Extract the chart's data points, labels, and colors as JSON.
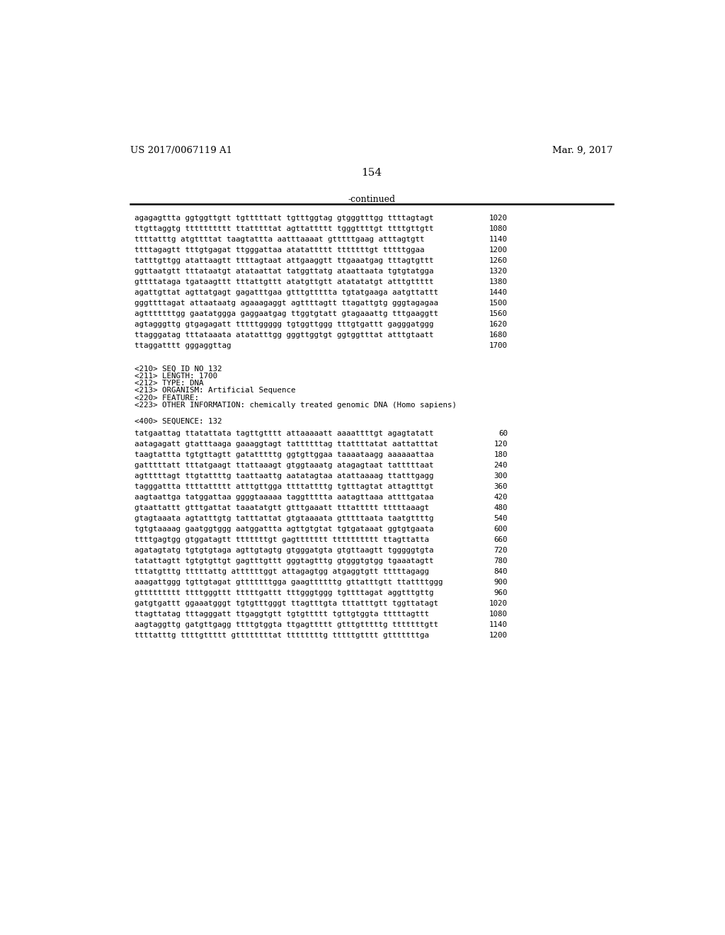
{
  "header_left": "US 2017/0067119 A1",
  "header_right": "Mar. 9, 2017",
  "page_number": "154",
  "continued_label": "-continued",
  "background_color": "#ffffff",
  "text_color": "#000000",
  "sequence_lines_top": [
    [
      "agagagttta ggtggttgtt tgtttttatt tgtttggtag gtgggtttgg ttttagtagt",
      "1020"
    ],
    [
      "ttgttaggtg tttttttttt ttatttttat agttattttt tgggttttgt ttttgttgtt",
      "1080"
    ],
    [
      "ttttatttg atgttttat taagtattta aatttaaaat gtttttgaag atttagtgtt",
      "1140"
    ],
    [
      "ttttagagtt tttgtgagat ttgggattaa atatattttt tttttttgt tttttggaa",
      "1200"
    ],
    [
      "tatttgttgg atattaagtt ttttagtaat attgaaggtt ttgaaatgag tttagtgttt",
      "1260"
    ],
    [
      "ggttaatgtt tttataatgt atataattat tatggttatg ataattaata tgtgtatgga",
      "1320"
    ],
    [
      "gttttataga tgataagttt tttattgttt atatgttgtt atatatatgt atttgttttt",
      "1380"
    ],
    [
      "agattgttat agttatgagt gagatttgaa gtttgttttta tgtatgaaga aatgttattt",
      "1440"
    ],
    [
      "gggttttagat attaataatg agaaagaggt agttttagtt ttagattgtg gggtagagaa",
      "1500"
    ],
    [
      "agtttttttgg gaatatggga gaggaatgag ttggtgtatt gtagaaattg tttgaaggtt",
      "1560"
    ],
    [
      "agtagggttg gtgagagatt tttttggggg tgtggttggg tttgtgattt gagggatggg",
      "1620"
    ],
    [
      "ttagggatag tttataaata atatatttgg gggttggtgt ggtggtttat atttgtaatt",
      "1680"
    ],
    [
      "ttaggatttt gggaggttag",
      "1700"
    ]
  ],
  "metadata_lines": [
    "<210> SEQ ID NO 132",
    "<211> LENGTH: 1700",
    "<212> TYPE: DNA",
    "<213> ORGANISM: Artificial Sequence",
    "<220> FEATURE:",
    "<223> OTHER INFORMATION: chemically treated genomic DNA (Homo sapiens)"
  ],
  "sequence400_label": "<400> SEQUENCE: 132",
  "sequence_lines_bottom": [
    [
      "tatgaattag ttatattata tagttgtttt attaaaaatt aaaattttgt agagtatatt",
      "60"
    ],
    [
      "aatagagatt gtatttaaga gaaaggtagt tattttttag ttattttatat aattatttat",
      "120"
    ],
    [
      "taagtattta tgtgttagtt gatatttttg ggtgttggaa taaaataagg aaaaaattaa",
      "180"
    ],
    [
      "gatttttatt tttatgaagt ttattaaagt gtggtaaatg atagagtaat tatttttaat",
      "240"
    ],
    [
      "agtttttagt ttgtattttg taattaattg aatatagtaa atattaaaag ttatttgagg",
      "300"
    ],
    [
      "tagggattta ttttattttt atttgttgga ttttattttg tgtttagtat attagtttgt",
      "360"
    ],
    [
      "aagtaattga tatggattaa ggggtaaaaa taggttttta aatagttaaa attttgataa",
      "420"
    ],
    [
      "gtaattattt gtttgattat taaatatgtt gtttgaaatt tttattttt tttttaaagt",
      "480"
    ],
    [
      "gtagtaaata agtatttgtg tatttattat gtgtaaaata gtttttaata taatgttttg",
      "540"
    ],
    [
      "tgtgtaaaag gaatggtggg aatggattta agttgtgtat tgtgataaat ggtgtgaata",
      "600"
    ],
    [
      "ttttgagtgg gtggatagtt tttttttgt gagttttttt tttttttttt ttagttatta",
      "660"
    ],
    [
      "agatagtatg tgtgtgtaga agttgtagtg gtgggatgta gtgttaagtt tgggggtgta",
      "720"
    ],
    [
      "tatattagtt tgtgtgttgt gagtttgttt gggtagtttg gtgggtgtgg tgaaatagtt",
      "780"
    ],
    [
      "tttatgtttg tttttattg attttttggt attagagtgg atgaggtgtt tttttagagg",
      "840"
    ],
    [
      "aaagattggg tgttgtagat gtttttttgga gaagttttttg gttatttgtt ttattttggg",
      "900"
    ],
    [
      "gttttttttt ttttgggttt tttttgattt tttgggtggg tgttttagat aggtttgttg",
      "960"
    ],
    [
      "gatgtgattt ggaaatgggt tgtgtttgggt ttagtttgta tttatttgtt tggttatagt",
      "1020"
    ],
    [
      "ttagttatag tttagggatt ttgaggtgtt tgtgttttt tgttgtggta tttttagttt",
      "1080"
    ],
    [
      "aagtaggttg gatgttgagg ttttgtggta ttgagttttt gtttgtttttg tttttttgtt",
      "1140"
    ],
    [
      "ttttatttg ttttgttttt gttttttttat ttttttttg tttttgtttt gtttttttga",
      "1200"
    ]
  ]
}
